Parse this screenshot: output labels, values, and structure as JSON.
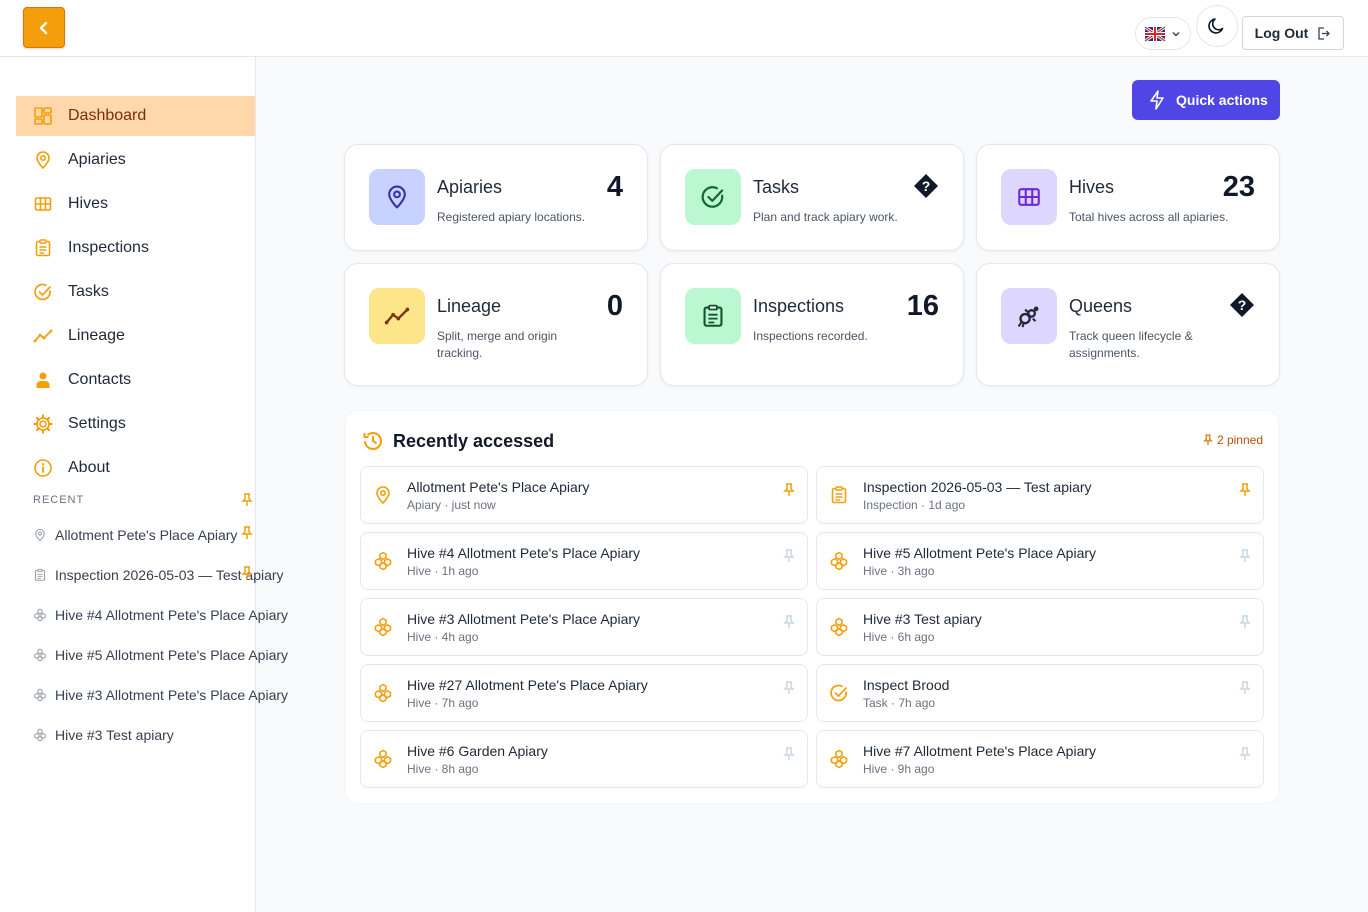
{
  "header": {
    "logout_label": "Log Out"
  },
  "sidebar": {
    "nav": [
      {
        "label": "Dashboard",
        "icon": "dashboard-icon",
        "active": true
      },
      {
        "label": "Apiaries",
        "icon": "map-pin-icon"
      },
      {
        "label": "Hives",
        "icon": "grid-icon"
      },
      {
        "label": "Inspections",
        "icon": "clipboard-icon"
      },
      {
        "label": "Tasks",
        "icon": "check-circle-icon"
      },
      {
        "label": "Lineage",
        "icon": "trend-icon"
      },
      {
        "label": "Contacts",
        "icon": "person-icon"
      },
      {
        "label": "Settings",
        "icon": "gear-icon"
      },
      {
        "label": "About",
        "icon": "info-icon"
      }
    ],
    "recent_label": "RECENT",
    "recent": [
      {
        "label": "Allotment Pete's Place Apiary",
        "icon": "map-pin-icon",
        "pinned": true
      },
      {
        "label": "Inspection 2026-05-03 — Test apiary",
        "icon": "clipboard-icon",
        "pinned": true
      },
      {
        "label": "Hive #4 Allotment Pete's Place Apiary",
        "icon": "honeycomb-icon",
        "pinned": false
      },
      {
        "label": "Hive #5 Allotment Pete's Place Apiary",
        "icon": "honeycomb-icon",
        "pinned": false
      },
      {
        "label": "Hive #3 Allotment Pete's Place Apiary",
        "icon": "honeycomb-icon",
        "pinned": false
      },
      {
        "label": "Hive #3 Test apiary",
        "icon": "honeycomb-icon",
        "pinned": false
      }
    ]
  },
  "main": {
    "quick_actions_label": "Quick actions",
    "cards": [
      {
        "title": "Apiaries",
        "desc": "Registered apiary locations.",
        "value": "4",
        "icon": "map-pin-icon"
      },
      {
        "title": "Tasks",
        "desc": "Plan and track apiary work.",
        "value": "",
        "icon": "check-circle-icon"
      },
      {
        "title": "Hives",
        "desc": "Total hives across all apiaries.",
        "value": "23",
        "icon": "grid-icon"
      },
      {
        "title": "Lineage",
        "desc": "Split, merge and origin tracking.",
        "value": "0",
        "icon": "trend-icon"
      },
      {
        "title": "Inspections",
        "desc": "Inspections recorded.",
        "value": "16",
        "icon": "clipboard-icon"
      },
      {
        "title": "Queens",
        "desc": "Track queen lifecycle & assignments.",
        "value": "",
        "icon": "queen-icon"
      }
    ],
    "recent_panel": {
      "title": "Recently accessed",
      "pinned_label": "2 pinned",
      "items": [
        {
          "title": "Allotment Pete's Place Apiary",
          "sub": "Apiary · just now",
          "icon": "map-pin-icon",
          "pinned": true
        },
        {
          "title": "Inspection 2026-05-03 — Test apiary",
          "sub": "Inspection · 1d ago",
          "icon": "clipboard-icon",
          "pinned": true
        },
        {
          "title": "Hive #4 Allotment Pete's Place Apiary",
          "sub": "Hive · 1h ago",
          "icon": "honeycomb-icon",
          "pinned": false
        },
        {
          "title": "Hive #5 Allotment Pete's Place Apiary",
          "sub": "Hive · 3h ago",
          "icon": "honeycomb-icon",
          "pinned": false
        },
        {
          "title": "Hive #3 Allotment Pete's Place Apiary",
          "sub": "Hive · 4h ago",
          "icon": "honeycomb-icon",
          "pinned": false
        },
        {
          "title": "Hive #3 Test apiary",
          "sub": "Hive · 6h ago",
          "icon": "honeycomb-icon",
          "pinned": false
        },
        {
          "title": "Hive #27 Allotment Pete's Place Apiary",
          "sub": "Hive · 7h ago",
          "icon": "honeycomb-icon",
          "pinned": false
        },
        {
          "title": "Inspect Brood",
          "sub": "Task · 7h ago",
          "icon": "check-circle-icon",
          "pinned": false
        },
        {
          "title": "Hive #6 Garden Apiary",
          "sub": "Hive · 8h ago",
          "icon": "honeycomb-icon",
          "pinned": false
        },
        {
          "title": "Hive #7 Allotment Pete's Place Apiary",
          "sub": "Hive · 9h ago",
          "icon": "honeycomb-icon",
          "pinned": false
        }
      ]
    }
  },
  "colors": {
    "accent": "#f59e0b",
    "primary": "#4f46e5",
    "active_nav_bg": "#fed7aa"
  }
}
